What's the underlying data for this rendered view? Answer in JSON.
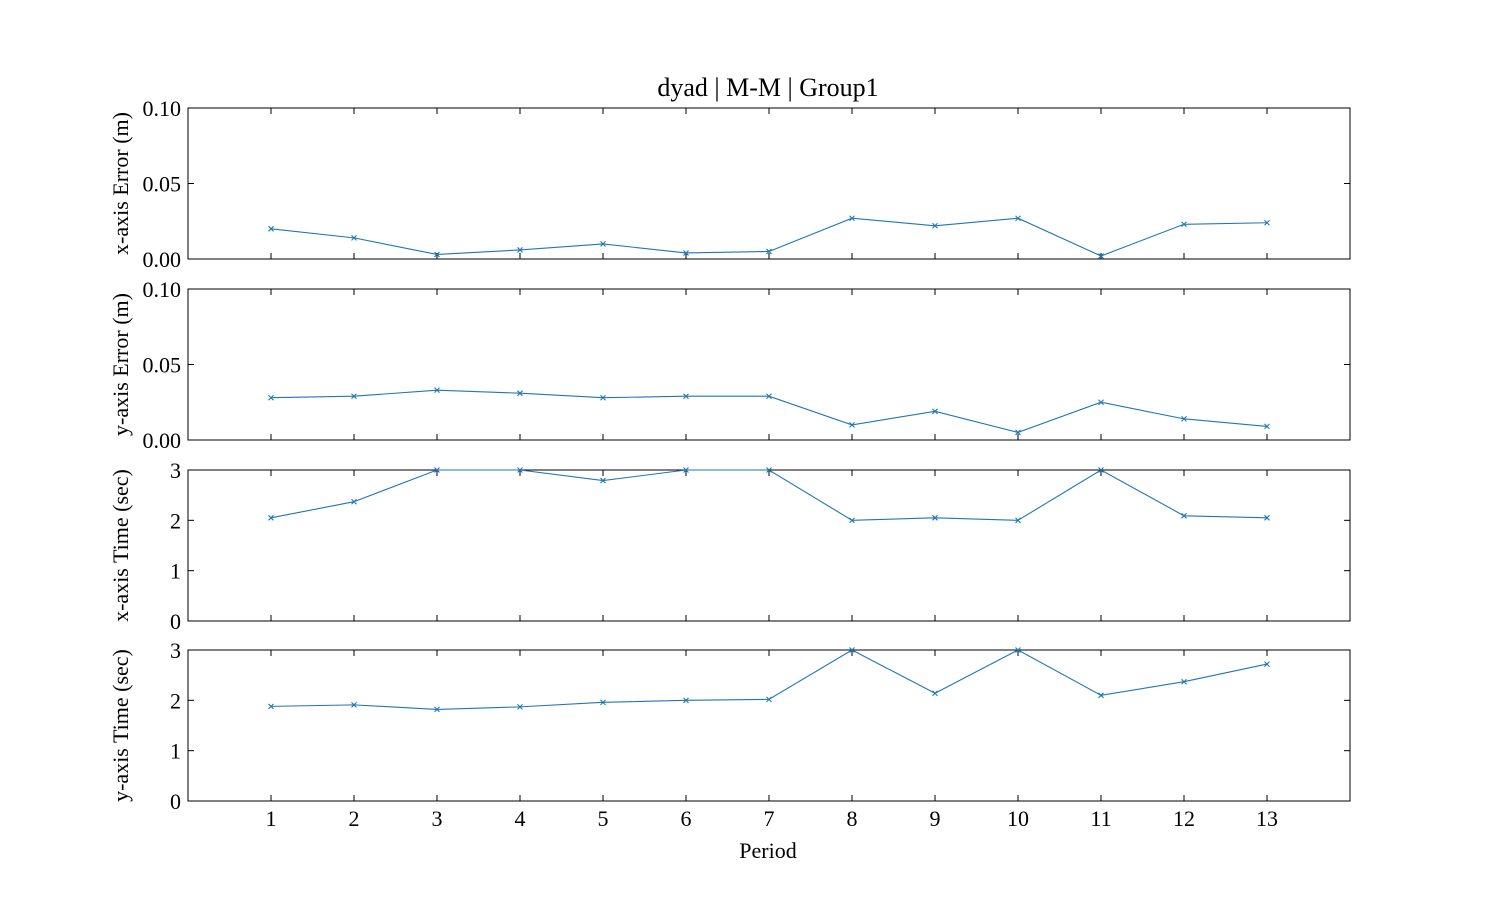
{
  "title": "dyad | M-M | Group1",
  "xlabel": "Period",
  "chart_data": [
    {
      "type": "line",
      "ylabel": "x-axis Error (m)",
      "x": [
        1,
        2,
        3,
        4,
        5,
        6,
        7,
        8,
        9,
        10,
        11,
        12,
        13
      ],
      "values": [
        0.02,
        0.014,
        0.003,
        0.006,
        0.01,
        0.004,
        0.005,
        0.027,
        0.022,
        0.027,
        0.002,
        0.023,
        0.024
      ],
      "yticks": [
        "0.00",
        "0.05",
        "0.10"
      ],
      "ylim": [
        0,
        0.1
      ],
      "xlim": [
        0,
        14
      ],
      "color": "#1f77b4",
      "marker": "x",
      "grid": false
    },
    {
      "type": "line",
      "ylabel": "y-axis Error (m)",
      "x": [
        1,
        2,
        3,
        4,
        5,
        6,
        7,
        8,
        9,
        10,
        11,
        12,
        13
      ],
      "values": [
        0.028,
        0.029,
        0.033,
        0.031,
        0.028,
        0.029,
        0.029,
        0.01,
        0.019,
        0.005,
        0.025,
        0.014,
        0.009
      ],
      "yticks": [
        "0.00",
        "0.05",
        "0.10"
      ],
      "ylim": [
        0,
        0.1
      ],
      "xlim": [
        0,
        14
      ],
      "color": "#1f77b4",
      "marker": "x",
      "grid": false
    },
    {
      "type": "line",
      "ylabel": "x-axis Time (sec)",
      "x": [
        1,
        2,
        3,
        4,
        5,
        6,
        7,
        8,
        9,
        10,
        11,
        12,
        13
      ],
      "values": [
        2.05,
        2.37,
        3.0,
        3.0,
        2.79,
        3.0,
        3.0,
        2.0,
        2.05,
        2.0,
        3.0,
        2.09,
        2.05
      ],
      "yticks": [
        "0",
        "1",
        "2",
        "3"
      ],
      "ylim": [
        0,
        3
      ],
      "xlim": [
        0,
        14
      ],
      "color": "#1f77b4",
      "marker": "x",
      "grid": false
    },
    {
      "type": "line",
      "ylabel": "y-axis Time (sec)",
      "x": [
        1,
        2,
        3,
        4,
        5,
        6,
        7,
        8,
        9,
        10,
        11,
        12,
        13
      ],
      "values": [
        1.88,
        1.91,
        1.82,
        1.87,
        1.96,
        2.0,
        2.02,
        3.0,
        2.14,
        3.0,
        2.1,
        2.37,
        2.72
      ],
      "yticks": [
        "0",
        "1",
        "2",
        "3"
      ],
      "ylim": [
        0,
        3
      ],
      "xlim": [
        0,
        14
      ],
      "color": "#1f77b4",
      "marker": "x",
      "grid": false
    }
  ],
  "xticks": [
    "1",
    "2",
    "3",
    "4",
    "5",
    "6",
    "7",
    "8",
    "9",
    "10",
    "11",
    "12",
    "13"
  ]
}
